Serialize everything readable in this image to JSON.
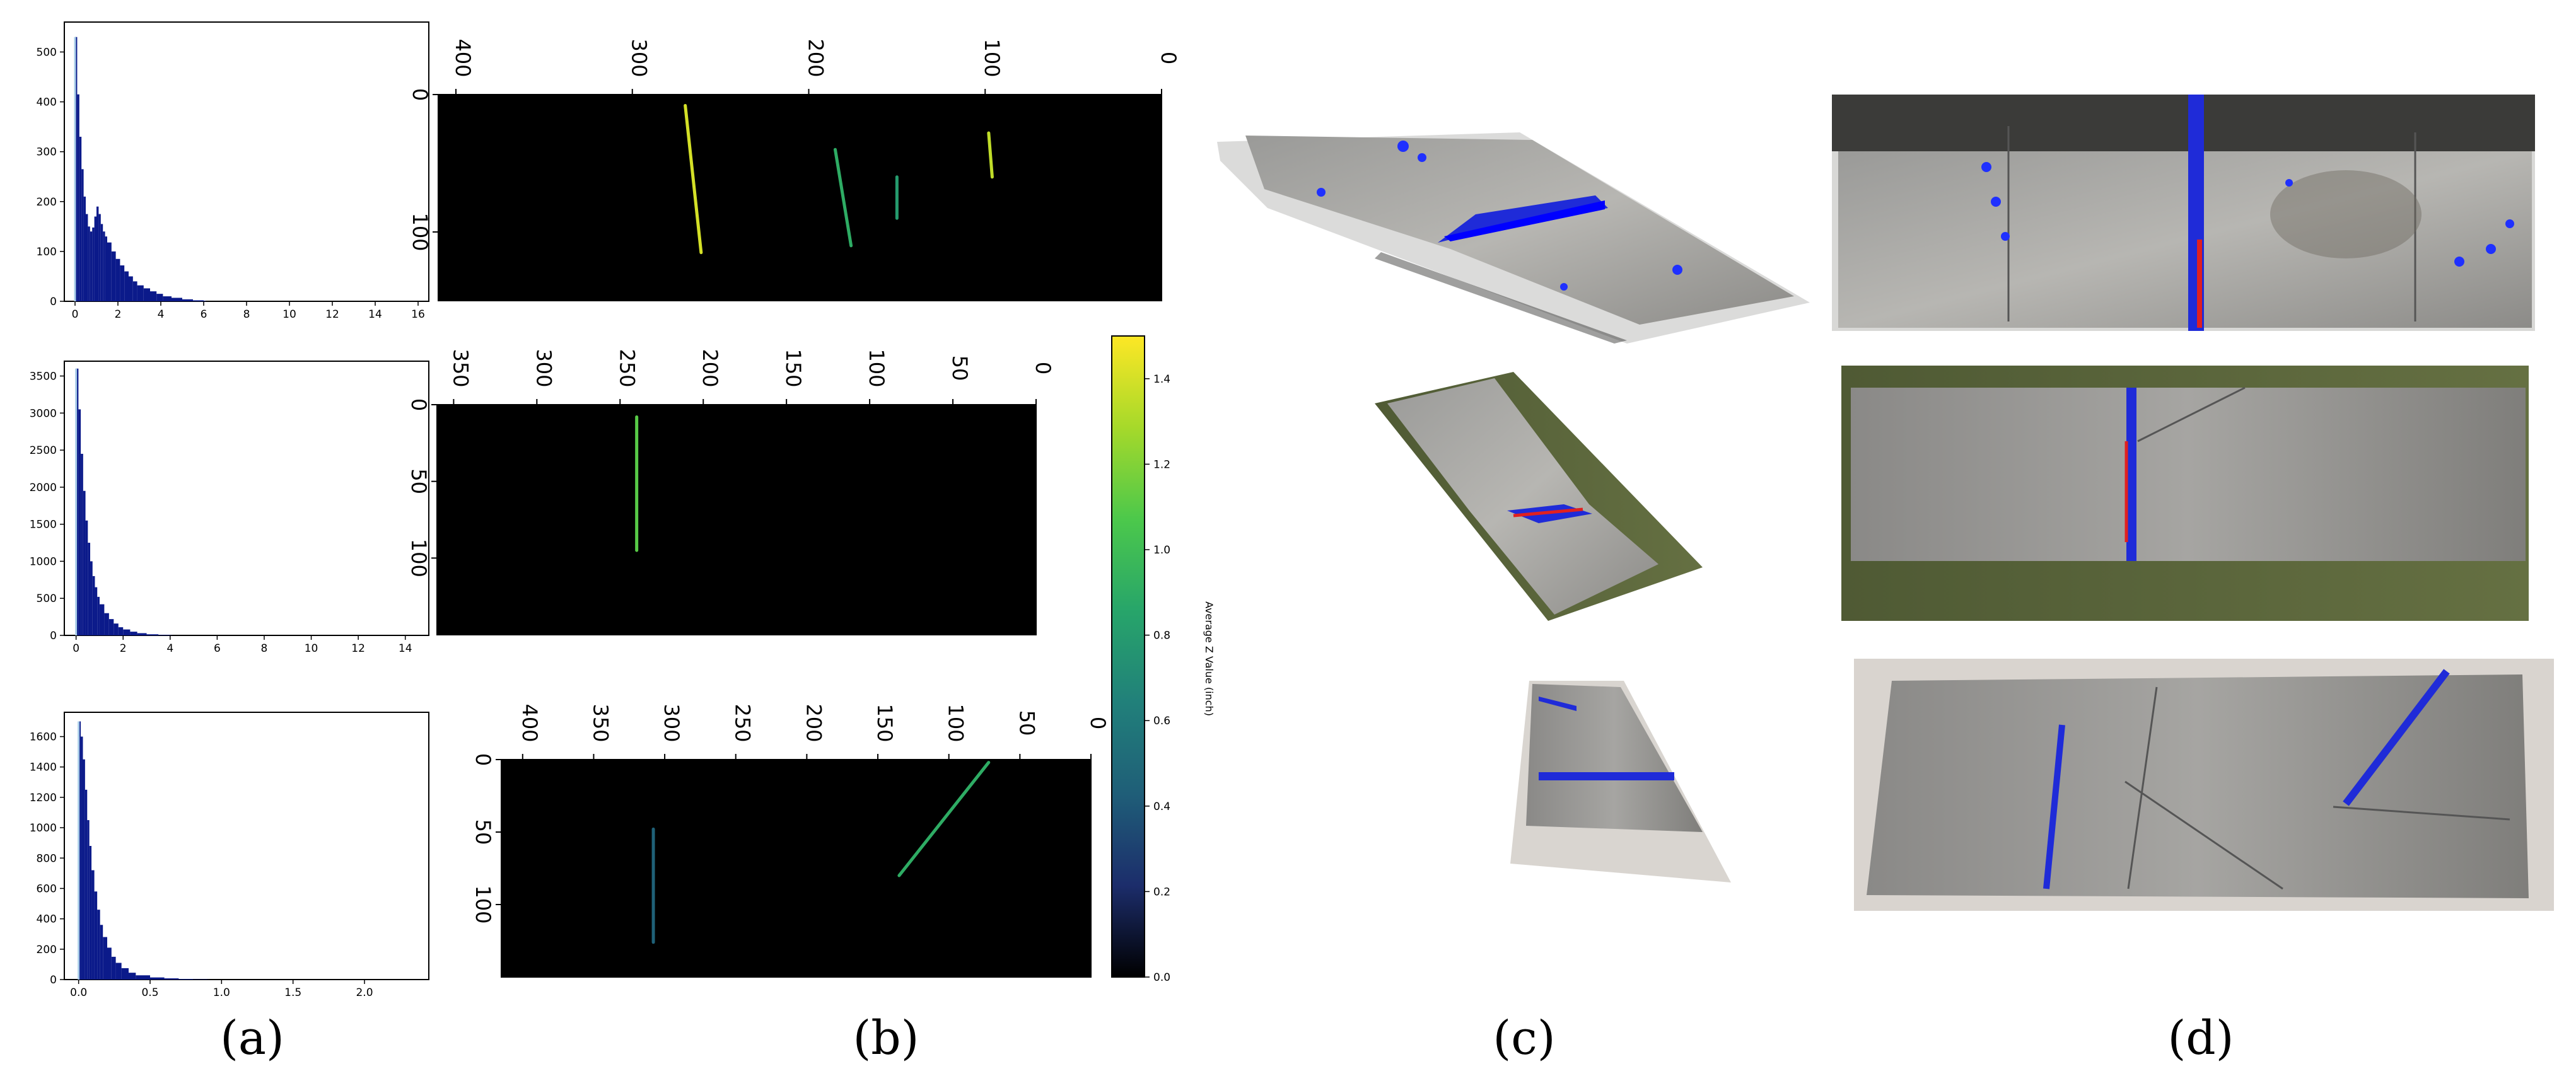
{
  "panel_labels": [
    "(a)",
    "(b)",
    "(c)",
    "(d)"
  ],
  "colorbar": {
    "label": "Average Z Value (inch)",
    "ticks": [
      "0.0",
      "0.2",
      "0.4",
      "0.6",
      "0.8",
      "1.0",
      "1.2",
      "1.4"
    ],
    "range": [
      0.0,
      1.5
    ],
    "colors": [
      "#000000",
      "#1c2d6b",
      "#1f5e78",
      "#21807a",
      "#27a56a",
      "#4cc84b",
      "#a6d92a",
      "#fde725"
    ]
  },
  "chart_data": [
    {
      "type": "bar",
      "panel": "a",
      "row": 1,
      "xlim": [
        -0.5,
        16.5
      ],
      "ylim": [
        0,
        560
      ],
      "x_ticks": [
        "0",
        "2",
        "4",
        "6",
        "8",
        "10",
        "12",
        "14",
        "16"
      ],
      "y_ticks": [
        "0",
        "100",
        "200",
        "300",
        "400",
        "500"
      ],
      "x": [
        0.0,
        0.1,
        0.2,
        0.3,
        0.4,
        0.5,
        0.6,
        0.7,
        0.8,
        0.9,
        1.0,
        1.1,
        1.2,
        1.3,
        1.4,
        1.5,
        1.7,
        1.9,
        2.1,
        2.3,
        2.5,
        2.7,
        2.9,
        3.2,
        3.5,
        3.8,
        4.1,
        4.5,
        5.0,
        5.5,
        6.0
      ],
      "values": [
        530,
        415,
        330,
        265,
        210,
        175,
        150,
        140,
        148,
        170,
        190,
        175,
        155,
        140,
        130,
        118,
        100,
        85,
        72,
        60,
        50,
        40,
        32,
        26,
        20,
        15,
        10,
        7,
        4,
        2,
        1
      ],
      "highlight": {
        "x": 0.0,
        "value": 530
      }
    },
    {
      "type": "bar",
      "panel": "a",
      "row": 2,
      "xlim": [
        -0.5,
        15
      ],
      "ylim": [
        0,
        3700
      ],
      "x_ticks": [
        "0",
        "2",
        "4",
        "6",
        "8",
        "10",
        "12",
        "14"
      ],
      "y_ticks": [
        "0",
        "500",
        "1000",
        "1500",
        "2000",
        "2500",
        "3000",
        "3500"
      ],
      "x": [
        0.0,
        0.1,
        0.2,
        0.3,
        0.4,
        0.5,
        0.6,
        0.7,
        0.8,
        0.9,
        1.0,
        1.2,
        1.4,
        1.6,
        1.8,
        2.0,
        2.3,
        2.6,
        3.0,
        3.5,
        4.0
      ],
      "values": [
        3600,
        3050,
        2450,
        1950,
        1550,
        1250,
        1000,
        800,
        650,
        520,
        420,
        300,
        220,
        160,
        110,
        80,
        50,
        30,
        15,
        6,
        2
      ],
      "highlight": {
        "x": 0.0,
        "value": 3600
      }
    },
    {
      "type": "bar",
      "panel": "a",
      "row": 3,
      "xlim": [
        -0.1,
        2.45
      ],
      "ylim": [
        0,
        1760
      ],
      "x_ticks": [
        "0.0",
        "0.5",
        "1.0",
        "1.5",
        "2.0"
      ],
      "y_ticks": [
        "0",
        "200",
        "400",
        "600",
        "800",
        "1000",
        "1200",
        "1400",
        "1600"
      ],
      "x": [
        0.0,
        0.015,
        0.03,
        0.045,
        0.06,
        0.075,
        0.09,
        0.11,
        0.13,
        0.15,
        0.17,
        0.2,
        0.23,
        0.26,
        0.3,
        0.35,
        0.4,
        0.5,
        0.6,
        0.7,
        0.8,
        0.9
      ],
      "values": [
        1700,
        1600,
        1450,
        1250,
        1050,
        880,
        720,
        580,
        460,
        360,
        280,
        210,
        150,
        110,
        75,
        45,
        28,
        14,
        8,
        4,
        2,
        1
      ],
      "highlight": {
        "x": 0.0,
        "value": 1700
      }
    },
    {
      "type": "heatmap",
      "panel": "b",
      "row": 1,
      "x_range": [
        0,
        410
      ],
      "x_ticks": [
        "400",
        "300",
        "200",
        "100",
        "0"
      ],
      "y_range": [
        0,
        150
      ],
      "y_ticks": [
        "0",
        "100"
      ],
      "colormap": "Average Z Value (inch)",
      "features": [
        {
          "kind": "line",
          "x1": 270,
          "y1": 8,
          "x2": 261,
          "y2": 115,
          "z": 1.4
        },
        {
          "kind": "line",
          "x1": 98,
          "y1": 28,
          "x2": 96,
          "y2": 60,
          "z": 1.35
        },
        {
          "kind": "line",
          "x1": 185,
          "y1": 40,
          "x2": 176,
          "y2": 110,
          "z": 0.9
        },
        {
          "kind": "line",
          "x1": 150,
          "y1": 60,
          "x2": 150,
          "y2": 90,
          "z": 0.8
        }
      ]
    },
    {
      "type": "heatmap",
      "panel": "b",
      "row": 2,
      "x_range": [
        0,
        360
      ],
      "x_ticks": [
        "350",
        "300",
        "250",
        "200",
        "150",
        "100",
        "50",
        "0"
      ],
      "y_range": [
        0,
        150
      ],
      "y_ticks": [
        "0",
        "50",
        "100"
      ],
      "colormap": "Average Z Value (inch)",
      "features": [
        {
          "kind": "line",
          "x1": 240,
          "y1": 8,
          "x2": 240,
          "y2": 95,
          "z": 1.1
        }
      ]
    },
    {
      "type": "heatmap",
      "panel": "b",
      "row": 3,
      "x_range": [
        0,
        415
      ],
      "x_ticks": [
        "400",
        "350",
        "300",
        "250",
        "200",
        "150",
        "100",
        "50",
        "0"
      ],
      "y_range": [
        0,
        150
      ],
      "y_ticks": [
        "0",
        "50",
        "100"
      ],
      "colormap": "Average Z Value (inch)",
      "features": [
        {
          "kind": "line",
          "x1": 72,
          "y1": 2,
          "x2": 135,
          "y2": 80,
          "z": 0.9
        },
        {
          "kind": "line",
          "x1": 308,
          "y1": 48,
          "x2": 308,
          "y2": 126,
          "z": 0.45
        }
      ]
    }
  ]
}
